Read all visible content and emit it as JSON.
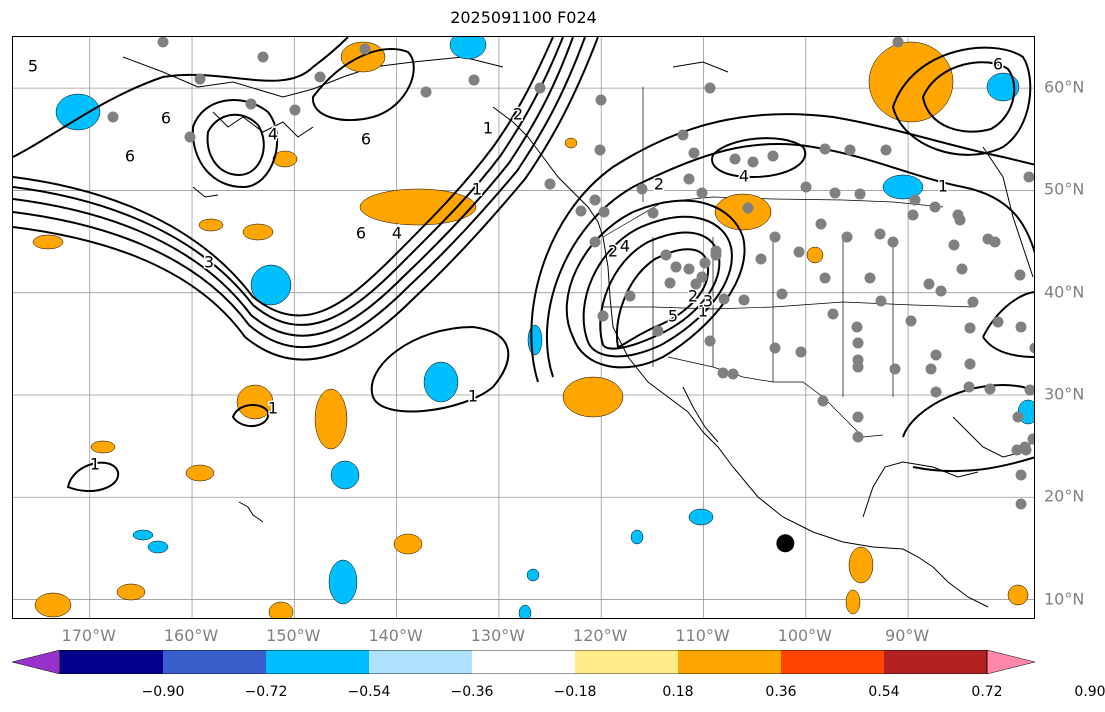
{
  "title": "2025091100 F024",
  "lon_labels": [
    {
      "text": "170°W",
      "lon": -170
    },
    {
      "text": "160°W",
      "lon": -160
    },
    {
      "text": "150°W",
      "lon": -150
    },
    {
      "text": "140°W",
      "lon": -140
    },
    {
      "text": "130°W",
      "lon": -130
    },
    {
      "text": "120°W",
      "lon": -120
    },
    {
      "text": "110°W",
      "lon": -110
    },
    {
      "text": "100°W",
      "lon": -100
    },
    {
      "text": "90°W",
      "lon": -90
    }
  ],
  "lat_labels": [
    {
      "text": "60°N",
      "lat": 60
    },
    {
      "text": "50°N",
      "lat": 50
    },
    {
      "text": "40°N",
      "lat": 40
    },
    {
      "text": "30°N",
      "lat": 30
    },
    {
      "text": "20°N",
      "lat": 20
    },
    {
      "text": "10°N",
      "lat": 10
    }
  ],
  "map_extent": {
    "lon_min": -177.5,
    "lon_max": -77.5,
    "lat_min": 8,
    "lat_max": 65
  },
  "contour_labels": [
    "5",
    "6",
    "6",
    "6",
    "4",
    "1",
    "3",
    "6",
    "4",
    "2",
    "1",
    "2",
    "1",
    "4",
    "2",
    "5",
    "3",
    "2",
    "1",
    "4",
    "1",
    "1",
    "1",
    "6"
  ],
  "station_marker": {
    "lon": -102,
    "lat": 15.5,
    "color": "#000000"
  },
  "colorbar": {
    "ticks": [
      "−0.90",
      "−0.72",
      "−0.54",
      "−0.36",
      "−0.18",
      "0.18",
      "0.36",
      "0.54",
      "0.72",
      "0.90"
    ],
    "colors": [
      "#9932cc",
      "#00008b",
      "#3a5fcd",
      "#00bfff",
      "#b0e2ff",
      "#ffffff",
      "#ffec8b",
      "#ffa500",
      "#ff4500",
      "#b22222",
      "#ff88aa"
    ]
  },
  "colors": {
    "positive": "#ffa500",
    "negative": "#00bfff",
    "station": "#808080",
    "grid": "#999999"
  }
}
